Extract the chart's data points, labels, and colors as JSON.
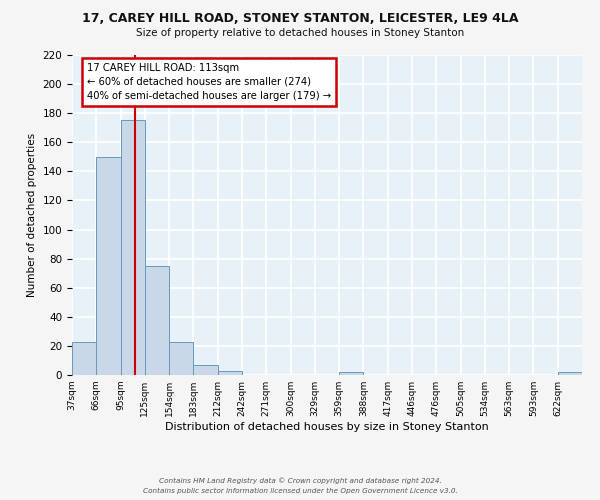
{
  "title": "17, CAREY HILL ROAD, STONEY STANTON, LEICESTER, LE9 4LA",
  "subtitle": "Size of property relative to detached houses in Stoney Stanton",
  "xlabel": "Distribution of detached houses by size in Stoney Stanton",
  "ylabel": "Number of detached properties",
  "bin_labels": [
    "37sqm",
    "66sqm",
    "95sqm",
    "125sqm",
    "154sqm",
    "183sqm",
    "212sqm",
    "242sqm",
    "271sqm",
    "300sqm",
    "329sqm",
    "359sqm",
    "388sqm",
    "417sqm",
    "446sqm",
    "476sqm",
    "505sqm",
    "534sqm",
    "563sqm",
    "593sqm",
    "622sqm"
  ],
  "bar_values": [
    23,
    150,
    175,
    75,
    23,
    7,
    3,
    0,
    0,
    0,
    0,
    2,
    0,
    0,
    0,
    0,
    0,
    0,
    0,
    0,
    2
  ],
  "bar_color": "#c8d8e8",
  "bar_edge_color": "#6699bb",
  "background_color": "#e8f0f8",
  "grid_color": "#ffffff",
  "annotation_text": "17 CAREY HILL ROAD: 113sqm\n← 60% of detached houses are smaller (274)\n40% of semi-detached houses are larger (179) →",
  "annotation_box_color": "#ffffff",
  "annotation_box_edge_color": "#cc0000",
  "ylim": [
    0,
    220
  ],
  "yticks": [
    0,
    20,
    40,
    60,
    80,
    100,
    120,
    140,
    160,
    180,
    200,
    220
  ],
  "footer_line1": "Contains HM Land Registry data © Crown copyright and database right 2024.",
  "footer_line2": "Contains public sector information licensed under the Open Government Licence v3.0.",
  "red_line_color": "#cc0000",
  "fig_background": "#f5f5f5"
}
